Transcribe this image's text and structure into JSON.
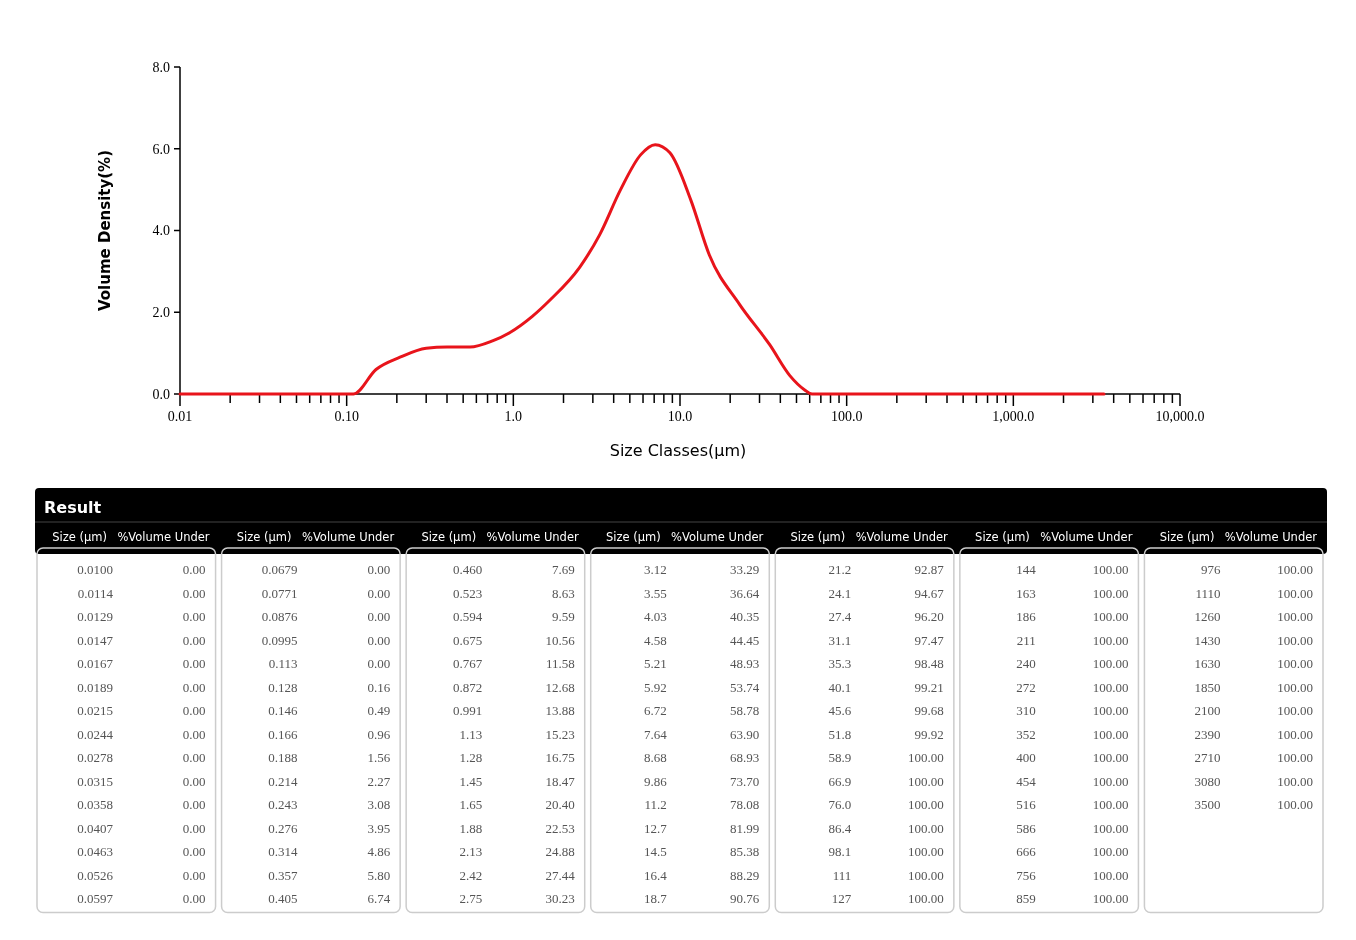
{
  "chart_data": [
    {
      "type": "line",
      "xlabel": "Size Classes(μm)",
      "ylabel": "Volume Density(%)",
      "log": "x",
      "xlim": [
        0.01,
        10000
      ],
      "ylim": [
        0,
        8
      ],
      "xticks": [
        {
          "value": 0.01,
          "label": "0.01"
        },
        {
          "value": 0.02,
          "label": null
        },
        {
          "value": 0.03,
          "label": null
        },
        {
          "value": 0.04,
          "label": null
        },
        {
          "value": 0.05,
          "label": null
        },
        {
          "value": 0.06,
          "label": null
        },
        {
          "value": 0.07,
          "label": null
        },
        {
          "value": 0.08,
          "label": null
        },
        {
          "value": 0.09,
          "label": null
        },
        {
          "value": 0.1,
          "label": "0.10"
        },
        {
          "value": 0.2,
          "label": null
        },
        {
          "value": 0.3,
          "label": null
        },
        {
          "value": 0.4,
          "label": null
        },
        {
          "value": 0.5,
          "label": null
        },
        {
          "value": 0.6,
          "label": null
        },
        {
          "value": 0.7,
          "label": null
        },
        {
          "value": 0.8,
          "label": null
        },
        {
          "value": 0.9,
          "label": null
        },
        {
          "value": 1,
          "label": "1.0"
        },
        {
          "value": 2,
          "label": null
        },
        {
          "value": 3,
          "label": null
        },
        {
          "value": 4,
          "label": null
        },
        {
          "value": 5,
          "label": null
        },
        {
          "value": 6,
          "label": null
        },
        {
          "value": 7,
          "label": null
        },
        {
          "value": 8,
          "label": null
        },
        {
          "value": 9,
          "label": null
        },
        {
          "value": 10,
          "label": "10.0"
        },
        {
          "value": 20,
          "label": null
        },
        {
          "value": 30,
          "label": null
        },
        {
          "value": 40,
          "label": null
        },
        {
          "value": 50,
          "label": null
        },
        {
          "value": 60,
          "label": null
        },
        {
          "value": 70,
          "label": null
        },
        {
          "value": 80,
          "label": null
        },
        {
          "value": 90,
          "label": null
        },
        {
          "value": 100,
          "label": "100.0"
        },
        {
          "value": 200,
          "label": null
        },
        {
          "value": 300,
          "label": null
        },
        {
          "value": 400,
          "label": null
        },
        {
          "value": 500,
          "label": null
        },
        {
          "value": 600,
          "label": null
        },
        {
          "value": 700,
          "label": null
        },
        {
          "value": 800,
          "label": null
        },
        {
          "value": 900,
          "label": null
        },
        {
          "value": 1000,
          "label": "1,000.0"
        },
        {
          "value": 2000,
          "label": null
        },
        {
          "value": 3000,
          "label": null
        },
        {
          "value": 4000,
          "label": null
        },
        {
          "value": 5000,
          "label": null
        },
        {
          "value": 6000,
          "label": null
        },
        {
          "value": 7000,
          "label": null
        },
        {
          "value": 8000,
          "label": null
        },
        {
          "value": 9000,
          "label": null
        },
        {
          "value": 10000,
          "label": "10,000.0"
        }
      ],
      "yticks": [
        {
          "value": 0,
          "label": "0.0"
        },
        {
          "value": 2,
          "label": "2.0"
        },
        {
          "value": 4,
          "label": "4.0"
        },
        {
          "value": 6,
          "label": "6.0"
        },
        {
          "value": 8,
          "label": "8.0"
        }
      ],
      "series": [
        {
          "color": "#e8141b",
          "x": [
            0.01,
            0.11,
            0.15,
            0.209,
            0.3,
            0.4,
            0.55,
            0.75,
            0.95,
            1.3,
            1.66,
            2.5,
            3.3,
            4.4,
            5.8,
            7.1,
            8.7,
            11.6,
            15,
            22.7,
            34.6,
            45.6,
            56,
            62,
            3500
          ],
          "values": [
            0,
            0,
            0.6,
            0.9,
            1.12,
            1.15,
            1.15,
            1.3,
            1.5,
            1.9,
            2.3,
            3.1,
            3.9,
            5.0,
            5.85,
            6.1,
            5.9,
            4.75,
            3.4,
            2.2,
            1.2,
            0.45,
            0.1,
            0,
            0
          ]
        }
      ]
    },
    {
      "type": "other",
      "title": "Result",
      "xlabel": "Size (μm)",
      "ylabel": "%Volume Under",
      "categories": [
        "0.0100",
        "0.0114",
        "0.0129",
        "0.0147",
        "0.0167",
        "0.0189",
        "0.0215",
        "0.0244",
        "0.0278",
        "0.0315",
        "0.0358",
        "0.0407",
        "0.0463",
        "0.0526",
        "0.0597",
        "0.0679",
        "0.0771",
        "0.0876",
        "0.0995",
        "0.113",
        "0.128",
        "0.146",
        "0.166",
        "0.188",
        "0.214",
        "0.243",
        "0.276",
        "0.314",
        "0.357",
        "0.405",
        "0.460",
        "0.523",
        "0.594",
        "0.675",
        "0.767",
        "0.872",
        "0.991",
        "1.13",
        "1.28",
        "1.45",
        "1.65",
        "1.88",
        "2.13",
        "2.42",
        "2.75",
        "3.12",
        "3.55",
        "4.03",
        "4.58",
        "5.21",
        "5.92",
        "6.72",
        "7.64",
        "8.68",
        "9.86",
        "11.2",
        "12.7",
        "14.5",
        "16.4",
        "18.7",
        "21.2",
        "24.1",
        "27.4",
        "31.1",
        "35.3",
        "40.1",
        "45.6",
        "51.8",
        "58.9",
        "66.9",
        "76.0",
        "86.4",
        "98.1",
        "111",
        "127",
        "144",
        "163",
        "186",
        "211",
        "240",
        "272",
        "310",
        "352",
        "400",
        "454",
        "516",
        "586",
        "666",
        "756",
        "859",
        "976",
        "1110",
        "1260",
        "1430",
        "1630",
        "1850",
        "2100",
        "2390",
        "2710",
        "3080",
        "3500"
      ],
      "value_labels": [
        "0.00",
        "0.00",
        "0.00",
        "0.00",
        "0.00",
        "0.00",
        "0.00",
        "0.00",
        "0.00",
        "0.00",
        "0.00",
        "0.00",
        "0.00",
        "0.00",
        "0.00",
        "0.00",
        "0.00",
        "0.00",
        "0.00",
        "0.00",
        "0.16",
        "0.49",
        "0.96",
        "1.56",
        "2.27",
        "3.08",
        "3.95",
        "4.86",
        "5.80",
        "6.74",
        "7.69",
        "8.63",
        "9.59",
        "10.56",
        "11.58",
        "12.68",
        "13.88",
        "15.23",
        "16.75",
        "18.47",
        "20.40",
        "22.53",
        "24.88",
        "27.44",
        "30.23",
        "33.29",
        "36.64",
        "40.35",
        "44.45",
        "48.93",
        "53.74",
        "58.78",
        "63.90",
        "68.93",
        "73.70",
        "78.08",
        "81.99",
        "85.38",
        "88.29",
        "90.76",
        "92.87",
        "94.67",
        "96.20",
        "97.47",
        "98.48",
        "99.21",
        "99.68",
        "99.92",
        "100.00",
        "100.00",
        "100.00",
        "100.00",
        "100.00",
        "100.00",
        "100.00",
        "100.00",
        "100.00",
        "100.00",
        "100.00",
        "100.00",
        "100.00",
        "100.00",
        "100.00",
        "100.00",
        "100.00",
        "100.00",
        "100.00",
        "100.00",
        "100.00",
        "100.00",
        "100.00",
        "100.00",
        "100.00",
        "100.00",
        "100.00",
        "100.00",
        "100.00",
        "100.00",
        "100.00",
        "100.00",
        "100.00"
      ]
    }
  ]
}
